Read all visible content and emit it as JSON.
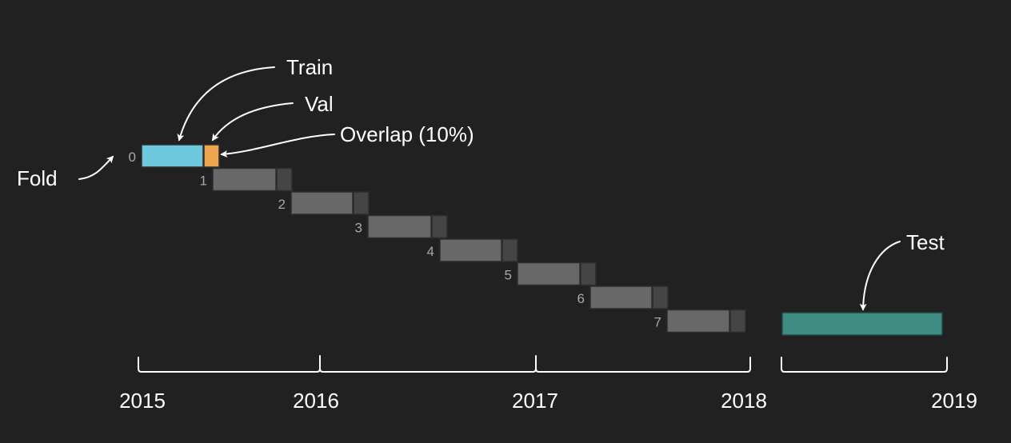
{
  "colors": {
    "background": "#212121",
    "train": "#6ec9df",
    "val": "#eea64e",
    "fold_train": "#686868",
    "fold_val": "#454545",
    "bar_outline": "#2d2d2d",
    "test": "#3f8c82",
    "test_outline": "#1f4a44",
    "label": "#ffffff",
    "fold_label": "#a8a8a8",
    "bracket": "#ffffff"
  },
  "annotations": {
    "train": "Train",
    "val": "Val",
    "overlap": "Overlap (10%)",
    "fold": "Fold",
    "test": "Test"
  },
  "folds": [
    {
      "label": "0",
      "highlight": true
    },
    {
      "label": "1",
      "highlight": false
    },
    {
      "label": "2",
      "highlight": false
    },
    {
      "label": "3",
      "highlight": false
    },
    {
      "label": "4",
      "highlight": false
    },
    {
      "label": "5",
      "highlight": false
    },
    {
      "label": "6",
      "highlight": false
    },
    {
      "label": "7",
      "highlight": false
    }
  ],
  "years": [
    "2015",
    "2016",
    "2017",
    "2018",
    "2019"
  ]
}
